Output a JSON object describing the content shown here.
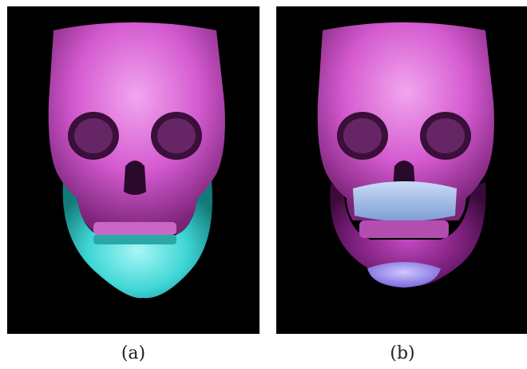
{
  "figure": {
    "panels": [
      {
        "caption": "(a)",
        "skull_color": "#d45ad0",
        "jaw_color": "#3fd6d6"
      },
      {
        "caption": "(b)",
        "skull_color": "#d45ad0",
        "jaw_color": "#7a1f7a",
        "teeth_color": "#a8c4ee",
        "chin_color": "#8a7cf0"
      }
    ]
  }
}
